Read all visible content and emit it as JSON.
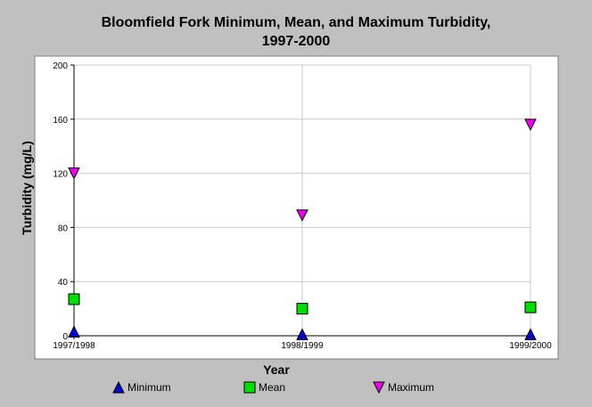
{
  "chart_data": {
    "type": "scatter",
    "title": "Bloomfield Fork Minimum, Mean, and Maximum Turbidity,",
    "subtitle": "1997-2000",
    "xlabel": "Year",
    "ylabel": "Turbidity (mg/L)",
    "categories": [
      "1997/1998",
      "1998/1999",
      "1999/2000"
    ],
    "ylim": [
      0,
      200
    ],
    "yticks": [
      0,
      40,
      80,
      120,
      160,
      200
    ],
    "grid": true,
    "legend_position": "bottom",
    "series": [
      {
        "name": "Minimum",
        "marker": "triangle-up",
        "color": "#0000cc",
        "values": [
          3,
          1,
          1
        ]
      },
      {
        "name": "Mean",
        "marker": "square",
        "color": "#00dd00",
        "values": [
          27,
          20,
          21
        ]
      },
      {
        "name": "Maximum",
        "marker": "triangle-down",
        "color": "#ee00ee",
        "values": [
          120,
          89,
          156
        ]
      }
    ]
  }
}
